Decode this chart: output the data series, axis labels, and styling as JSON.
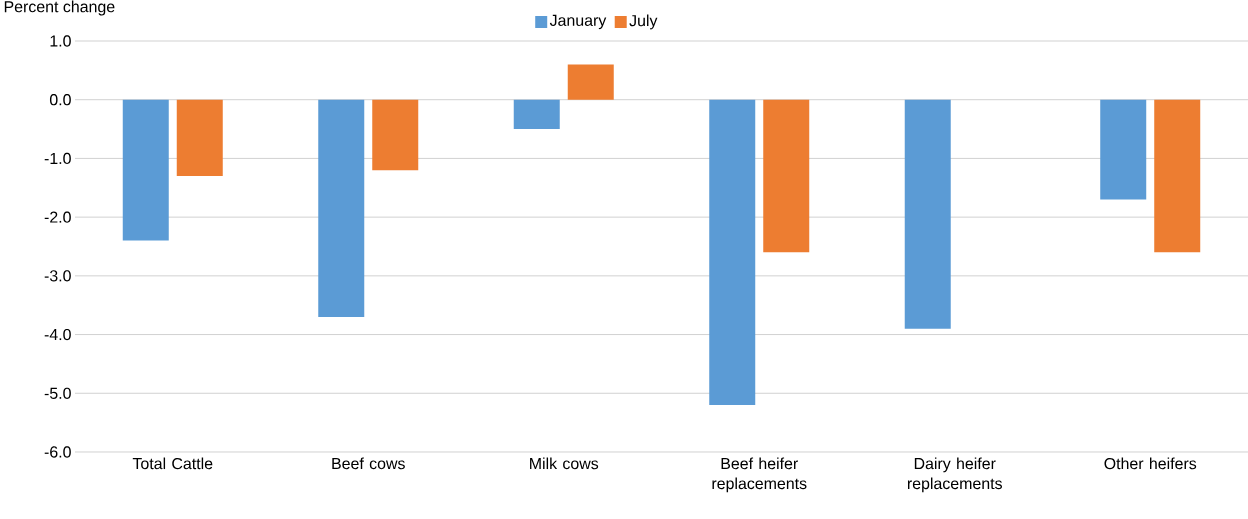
{
  "chart_data": {
    "type": "bar",
    "ylabel": "Percent change",
    "categories": [
      "Total Cattle",
      "Beef cows",
      "Milk cows",
      "Beef heifer replacements",
      "Dairy heifer replacements",
      "Other heifers"
    ],
    "series": [
      {
        "name": "January",
        "color": "#5b9bd5",
        "values": [
          -2.4,
          -3.7,
          -0.5,
          -5.2,
          -3.9,
          -1.7
        ]
      },
      {
        "name": "July",
        "color": "#ed7d31",
        "values": [
          -1.3,
          -1.2,
          0.6,
          -2.6,
          null,
          -2.6
        ]
      }
    ],
    "ylim": [
      -6.0,
      1.0
    ],
    "yticks": [
      {
        "value": -6,
        "label": "-6.0"
      },
      {
        "value": -5,
        "label": "-5.0"
      },
      {
        "value": -4,
        "label": "-4.0"
      },
      {
        "value": -3,
        "label": "-3.0"
      },
      {
        "value": -2,
        "label": "-2.0"
      },
      {
        "value": -1,
        "label": "-1.0"
      },
      {
        "value": 0,
        "label": "0.0"
      },
      {
        "value": 1,
        "label": "1.0"
      }
    ],
    "grid": "y",
    "legend": "top"
  }
}
